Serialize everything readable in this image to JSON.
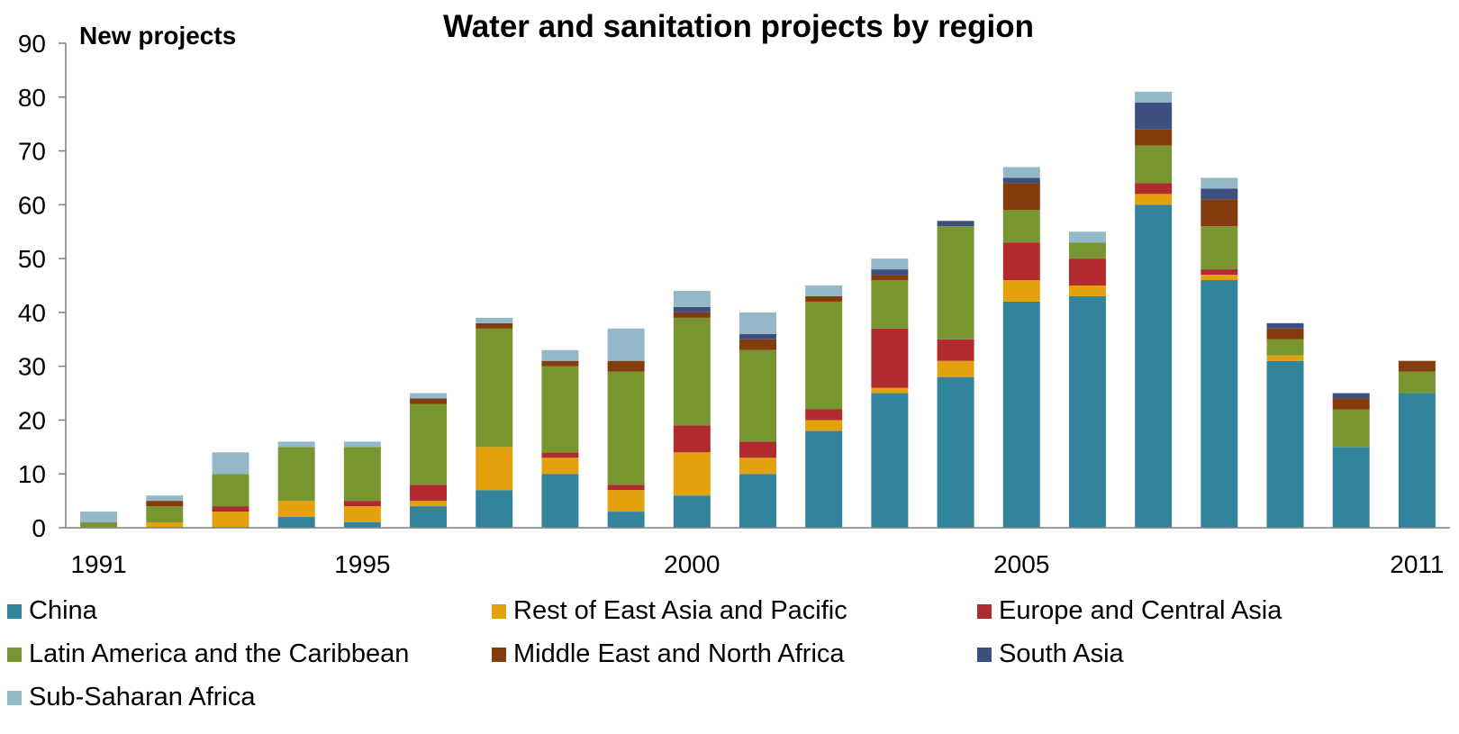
{
  "chart_data": {
    "type": "bar",
    "stacked": true,
    "title": "Water and sanitation projects by region",
    "ylabel": "New projects",
    "xlabel": "",
    "ylim": [
      0,
      90
    ],
    "yticks": [
      0,
      10,
      20,
      30,
      40,
      50,
      60,
      70,
      80,
      90
    ],
    "categories": [
      "1991",
      "1992",
      "1993",
      "1994",
      "1995",
      "1996",
      "1997",
      "1998",
      "1999",
      "2000",
      "2001",
      "2002",
      "2003",
      "2004",
      "2005",
      "2006",
      "2007",
      "2008",
      "2009",
      "2010",
      "2011"
    ],
    "x_tick_labels": [
      "1991",
      "1995",
      "2000",
      "2005",
      "2011"
    ],
    "grid": false,
    "legend_position": "bottom",
    "series": [
      {
        "name": "China",
        "color": "#31849B",
        "values": [
          0,
          0,
          0,
          2,
          1,
          4,
          7,
          10,
          3,
          6,
          10,
          18,
          25,
          28,
          42,
          43,
          60,
          46,
          31,
          15,
          25
        ]
      },
      {
        "name": "Rest of East Asia and Pacific",
        "color": "#E3A20D",
        "values": [
          0,
          1,
          3,
          3,
          3,
          1,
          8,
          3,
          4,
          8,
          3,
          2,
          1,
          3,
          4,
          2,
          2,
          1,
          1,
          0,
          0
        ]
      },
      {
        "name": "Europe and Central Asia",
        "color": "#B02A2E",
        "values": [
          0,
          0,
          1,
          0,
          1,
          3,
          0,
          1,
          1,
          5,
          3,
          2,
          11,
          4,
          7,
          5,
          2,
          1,
          0,
          0,
          0
        ]
      },
      {
        "name": "Latin America and the Caribbean",
        "color": "#77962F",
        "values": [
          1,
          3,
          6,
          10,
          10,
          15,
          22,
          16,
          21,
          20,
          17,
          20,
          9,
          21,
          6,
          3,
          7,
          8,
          3,
          7,
          4
        ]
      },
      {
        "name": "Middle East and North Africa",
        "color": "#843C0C",
        "values": [
          0,
          1,
          0,
          0,
          0,
          1,
          1,
          1,
          2,
          1,
          2,
          1,
          1,
          0,
          5,
          0,
          3,
          5,
          2,
          2,
          2
        ]
      },
      {
        "name": "South Asia",
        "color": "#3D4F7F",
        "values": [
          0,
          0,
          0,
          0,
          0,
          0,
          0,
          0,
          0,
          1,
          1,
          0,
          1,
          1,
          1,
          0,
          5,
          2,
          1,
          1,
          0
        ]
      },
      {
        "name": "Sub-Saharan Africa",
        "color": "#93B8C8",
        "values": [
          2,
          1,
          4,
          1,
          1,
          1,
          1,
          2,
          6,
          3,
          4,
          2,
          2,
          0,
          2,
          2,
          2,
          2,
          0,
          0,
          0
        ]
      }
    ]
  }
}
